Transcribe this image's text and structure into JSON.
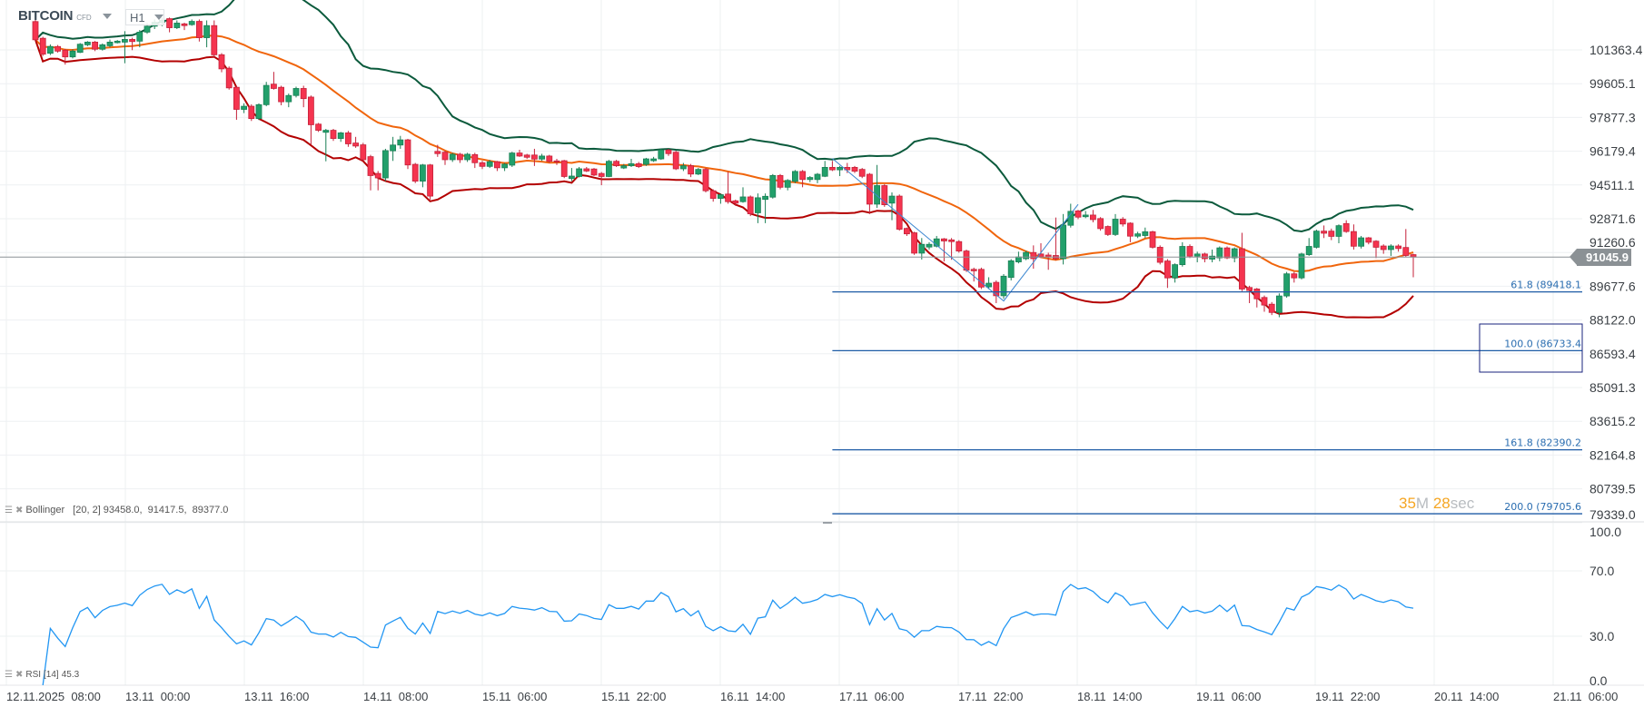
{
  "header": {
    "symbol": "BITCOIN",
    "instrument_type": "CFD",
    "timeframe": "H1"
  },
  "current_price": "91045.9",
  "countdown": {
    "minutes": "35",
    "m_unit": "M",
    "seconds": "28",
    "s_unit": "sec"
  },
  "indicators": {
    "bollinger": {
      "name": "Bollinger",
      "params": "[20, 2]",
      "values": "93458.0,  91417.5,  89377.0",
      "period": 20,
      "stddev": 2
    },
    "rsi": {
      "name": "RSI",
      "params": "[14]",
      "value": "45.3",
      "period": 14
    }
  },
  "colors": {
    "up": "#22a06b",
    "up_border": "#1a7f55",
    "down": "#f5344f",
    "down_border": "#c4223a",
    "bb_upper": "#0b5a3c",
    "bb_middle": "#f0650c",
    "bb_lower": "#b30000",
    "rsi": "#2196f3",
    "fib": "#1e5ca6",
    "price_line": "#8b9195"
  },
  "chart_data": [
    {
      "type": "candlestick",
      "title": "",
      "y_axis_ticks": [
        "101363.4",
        "99605.1",
        "97877.3",
        "96179.4",
        "94511.1",
        "92871.6",
        "91260.6",
        "89677.6",
        "88122.0",
        "86593.4",
        "85091.3",
        "83615.2",
        "82164.8",
        "80739.5",
        "79339.0"
      ],
      "x_axis_ticks": [
        "12.11.2025  08:00",
        "13.11  00:00",
        "13.11  16:00",
        "14.11  08:00",
        "15.11  06:00",
        "15.11  22:00",
        "16.11  14:00",
        "17.11  06:00",
        "17.11  22:00",
        "18.11  14:00",
        "19.11  06:00",
        "19.11  22:00",
        "20.11  14:00",
        "21.11  06:00"
      ],
      "grid": true,
      "candles_ohlc": [
        [
          102840,
          102950,
          101800,
          101890
        ],
        [
          101970,
          102050,
          101050,
          101140
        ],
        [
          101190,
          101650,
          101100,
          101540
        ],
        [
          101540,
          101620,
          101220,
          101300
        ],
        [
          101350,
          101420,
          100600,
          101000
        ],
        [
          101000,
          101400,
          100920,
          101300
        ],
        [
          101236,
          101720,
          101200,
          101660
        ],
        [
          101630,
          101820,
          101560,
          101770
        ],
        [
          101770,
          101830,
          101300,
          101400
        ],
        [
          101400,
          101700,
          101330,
          101630
        ],
        [
          101580,
          101900,
          101500,
          101770
        ],
        [
          101740,
          101880,
          101700,
          101820
        ],
        [
          101770,
          102340,
          100670,
          101910
        ],
        [
          101910,
          102000,
          101350,
          101800
        ],
        [
          101820,
          102400,
          101500,
          102290
        ],
        [
          102290,
          102750,
          102200,
          102600
        ],
        [
          102600,
          102950,
          102450,
          102800
        ],
        [
          102800,
          103050,
          102600,
          102900
        ],
        [
          102990,
          103050,
          102280,
          102520
        ],
        [
          102520,
          102900,
          102450,
          102760
        ],
        [
          102720,
          102780,
          102400,
          102630
        ],
        [
          102680,
          102950,
          102620,
          102850
        ],
        [
          102850,
          102950,
          101800,
          102000
        ],
        [
          102000,
          102900,
          101500,
          102630
        ],
        [
          102630,
          102900,
          100950,
          101110
        ],
        [
          101110,
          101200,
          100200,
          100376
        ],
        [
          100410,
          100500,
          99300,
          99390
        ],
        [
          99420,
          99500,
          97760,
          98290
        ],
        [
          98290,
          98600,
          98100,
          98450
        ],
        [
          98450,
          98550,
          97700,
          97820
        ],
        [
          97820,
          98600,
          97750,
          98530
        ],
        [
          98530,
          99700,
          98450,
          99516
        ],
        [
          99580,
          100220,
          99300,
          99360
        ],
        [
          99420,
          99500,
          98500,
          98680
        ],
        [
          98680,
          99100,
          98400,
          99000
        ],
        [
          99000,
          99450,
          98900,
          99360
        ],
        [
          99360,
          99500,
          98400,
          98840
        ],
        [
          98920,
          99000,
          96515,
          97510
        ],
        [
          97540,
          97600,
          97150,
          97230
        ],
        [
          97130,
          97300,
          95680,
          97230
        ],
        [
          97230,
          97300,
          96700,
          96820
        ],
        [
          96820,
          97150,
          96650,
          97100
        ],
        [
          97100,
          97200,
          96400,
          96550
        ],
        [
          96590,
          96900,
          96350,
          96440
        ],
        [
          96500,
          96600,
          95700,
          95760
        ],
        [
          95910,
          96000,
          94250,
          94975
        ],
        [
          95080,
          95200,
          94250,
          94860
        ],
        [
          94860,
          96300,
          94700,
          96210
        ],
        [
          96200,
          96900,
          95700,
          96490
        ],
        [
          96490,
          96950,
          96300,
          96750
        ],
        [
          96750,
          96800,
          95300,
          95500
        ],
        [
          95530,
          95600,
          94600,
          94700
        ],
        [
          94700,
          95550,
          94400,
          95500
        ],
        [
          95500,
          95550,
          93800,
          93970
        ],
        [
          96170,
          96500,
          95900,
          96060
        ],
        [
          96130,
          96200,
          95500,
          95760
        ],
        [
          95760,
          96100,
          95650,
          96030
        ],
        [
          96030,
          96100,
          95600,
          95760
        ],
        [
          95760,
          96100,
          95650,
          96030
        ],
        [
          96010,
          96100,
          95350,
          95610
        ],
        [
          95610,
          95700,
          95300,
          95430
        ],
        [
          95430,
          95750,
          95350,
          95660
        ],
        [
          95660,
          95700,
          95200,
          95360
        ],
        [
          95360,
          95600,
          95200,
          95540
        ],
        [
          95490,
          96150,
          95400,
          96090
        ],
        [
          96090,
          96250,
          95900,
          95940
        ],
        [
          95990,
          96050,
          95800,
          95880
        ],
        [
          95990,
          96300,
          95450,
          95790
        ],
        [
          95790,
          96050,
          95700,
          95940
        ],
        [
          95940,
          96000,
          95600,
          95680
        ],
        [
          95700,
          95800,
          95500,
          95650
        ],
        [
          95710,
          95750,
          94850,
          94930
        ],
        [
          94830,
          95350,
          94700,
          94950
        ],
        [
          94930,
          95400,
          94880,
          95310
        ],
        [
          95310,
          95400,
          95150,
          95200
        ],
        [
          95300,
          95350,
          94950,
          95000
        ],
        [
          95080,
          95150,
          94500,
          94930
        ],
        [
          94930,
          95750,
          94900,
          95680
        ],
        [
          95680,
          95750,
          95400,
          95460
        ],
        [
          95350,
          95550,
          95300,
          95460
        ],
        [
          95460,
          95800,
          95400,
          95560
        ],
        [
          95560,
          95650,
          95350,
          95420
        ],
        [
          95530,
          95850,
          95450,
          95800
        ],
        [
          95710,
          95900,
          95650,
          95800
        ],
        [
          95800,
          96300,
          95750,
          96240
        ],
        [
          96240,
          96300,
          95950,
          96060
        ],
        [
          96130,
          96200,
          95250,
          95310
        ],
        [
          95310,
          95600,
          95200,
          95460
        ],
        [
          95460,
          95550,
          94900,
          95050
        ],
        [
          95050,
          95350,
          95000,
          95280
        ],
        [
          95280,
          95350,
          94150,
          94230
        ],
        [
          94230,
          94300,
          93700,
          93860
        ],
        [
          93860,
          94100,
          93600,
          94040
        ],
        [
          94070,
          95150,
          93600,
          93700
        ],
        [
          93740,
          93800,
          93500,
          93630
        ],
        [
          93700,
          94400,
          93650,
          93930
        ],
        [
          93930,
          94000,
          93000,
          93110
        ],
        [
          93160,
          94100,
          92660,
          93890
        ],
        [
          93810,
          94100,
          92660,
          93960
        ],
        [
          93920,
          95050,
          93850,
          94980
        ],
        [
          94980,
          95050,
          94300,
          94400
        ],
        [
          94400,
          94800,
          94250,
          94735
        ],
        [
          94690,
          95250,
          94600,
          95180
        ],
        [
          95180,
          95250,
          94400,
          94780
        ],
        [
          94780,
          94950,
          94650,
          94880
        ],
        [
          94780,
          95100,
          94600,
          95040
        ],
        [
          94940,
          95700,
          94900,
          95380
        ],
        [
          95380,
          95700,
          95200,
          95260
        ],
        [
          95260,
          95450,
          94950,
          95380
        ],
        [
          95380,
          95600,
          95100,
          95260
        ],
        [
          95380,
          95450,
          95100,
          95190
        ],
        [
          95280,
          95350,
          94850,
          94940
        ],
        [
          95040,
          95100,
          93100,
          93580
        ],
        [
          93580,
          95500,
          93400,
          94480
        ],
        [
          94480,
          94550,
          93450,
          93550
        ],
        [
          93630,
          94150,
          92800,
          93970
        ],
        [
          93970,
          94050,
          92300,
          92370
        ],
        [
          92410,
          92450,
          92050,
          92150
        ],
        [
          92200,
          92250,
          91150,
          91230
        ],
        [
          91230,
          91950,
          90930,
          91650
        ],
        [
          91520,
          91750,
          91400,
          91650
        ],
        [
          91560,
          92050,
          91500,
          91910
        ],
        [
          91910,
          91950,
          90840,
          91810
        ],
        [
          91860,
          91950,
          90920,
          91780
        ],
        [
          91780,
          91850,
          91250,
          91330
        ],
        [
          91330,
          91400,
          90350,
          90430
        ],
        [
          90470,
          90550,
          89900,
          90400
        ],
        [
          90470,
          90550,
          89550,
          89640
        ],
        [
          89650,
          90100,
          89550,
          89820
        ],
        [
          89860,
          89950,
          88900,
          89240
        ],
        [
          89240,
          90250,
          89100,
          90150
        ],
        [
          90090,
          90950,
          89950,
          90870
        ],
        [
          90820,
          91300,
          90750,
          91050
        ],
        [
          90970,
          91350,
          90900,
          91260
        ],
        [
          91260,
          91600,
          90500,
          90970
        ],
        [
          91190,
          91700,
          91000,
          91050
        ],
        [
          91140,
          91250,
          90450,
          91050
        ],
        [
          91120,
          92930,
          90900,
          90970
        ],
        [
          90970,
          93100,
          90700,
          92570
        ],
        [
          92560,
          93600,
          92450,
          93230
        ],
        [
          93250,
          93300,
          92850,
          92950
        ],
        [
          92970,
          93250,
          92900,
          93050
        ],
        [
          93050,
          93300,
          92700,
          92830
        ],
        [
          92880,
          92950,
          92300,
          92400
        ],
        [
          92500,
          92550,
          92050,
          92120
        ],
        [
          92120,
          93100,
          92050,
          92850
        ],
        [
          92850,
          92950,
          92500,
          92620
        ],
        [
          92660,
          92700,
          91750,
          92040
        ],
        [
          92040,
          92250,
          91950,
          92150
        ],
        [
          92070,
          92450,
          91950,
          92250
        ],
        [
          92250,
          92300,
          91450,
          91510
        ],
        [
          91510,
          91600,
          90700,
          90800
        ],
        [
          90860,
          90950,
          89600,
          90070
        ],
        [
          90070,
          90750,
          89850,
          90690
        ],
        [
          90690,
          91750,
          90600,
          91550
        ],
        [
          91550,
          91650,
          91000,
          91090
        ],
        [
          91090,
          91300,
          90800,
          91190
        ],
        [
          91190,
          91250,
          90800,
          90970
        ],
        [
          90950,
          91400,
          90800,
          91090
        ],
        [
          91010,
          91550,
          90850,
          91480
        ],
        [
          91480,
          91550,
          90950,
          91010
        ],
        [
          91010,
          91500,
          90800,
          91440
        ],
        [
          91440,
          92200,
          89450,
          89550
        ],
        [
          89620,
          89700,
          88900,
          89480
        ],
        [
          89550,
          89600,
          88700,
          89100
        ],
        [
          89160,
          89250,
          88500,
          88810
        ],
        [
          88850,
          88950,
          88350,
          88470
        ],
        [
          88470,
          89350,
          88250,
          89230
        ],
        [
          89230,
          90350,
          89150,
          90260
        ],
        [
          90260,
          90350,
          89850,
          90070
        ],
        [
          90070,
          91250,
          90000,
          91190
        ],
        [
          91160,
          91950,
          91100,
          91550
        ],
        [
          91510,
          92350,
          91450,
          92280
        ],
        [
          92280,
          92550,
          91950,
          92180
        ],
        [
          92280,
          92400,
          91850,
          92030
        ],
        [
          92030,
          92600,
          91700,
          92540
        ],
        [
          92640,
          92800,
          92200,
          92260
        ],
        [
          92260,
          92600,
          91400,
          91560
        ],
        [
          91560,
          92050,
          91450,
          91960
        ],
        [
          91960,
          92000,
          91650,
          91750
        ],
        [
          91800,
          91850,
          91000,
          91510
        ],
        [
          91570,
          91650,
          91200,
          91400
        ],
        [
          91400,
          91650,
          91100,
          91570
        ],
        [
          91570,
          91650,
          91300,
          91450
        ],
        [
          91500,
          92380,
          91050,
          91120
        ],
        [
          91160,
          91200,
          90100,
          91046
        ]
      ]
    },
    {
      "type": "line",
      "title": "",
      "y_axis_ticks": [
        "100.0",
        "70.0",
        "30.0",
        "0.0"
      ],
      "ylim": [
        0,
        100
      ],
      "gridlines_at": [
        70,
        30
      ]
    }
  ],
  "fibonacci": {
    "levels": [
      {
        "label": "61.8 (89418.1",
        "price": 89418.1
      },
      {
        "label": "100.0 (86733.4",
        "price": 86733.4
      },
      {
        "label": "161.8 (82390.2",
        "price": 82390.2
      },
      {
        "label": "200.0 (79705.6",
        "price": 79705.6
      }
    ],
    "trend_points": [
      {
        "candle": 108,
        "price": 95820
      },
      {
        "candle": 131,
        "price": 89000
      },
      {
        "candle": 141,
        "price": 93570
      }
    ]
  }
}
